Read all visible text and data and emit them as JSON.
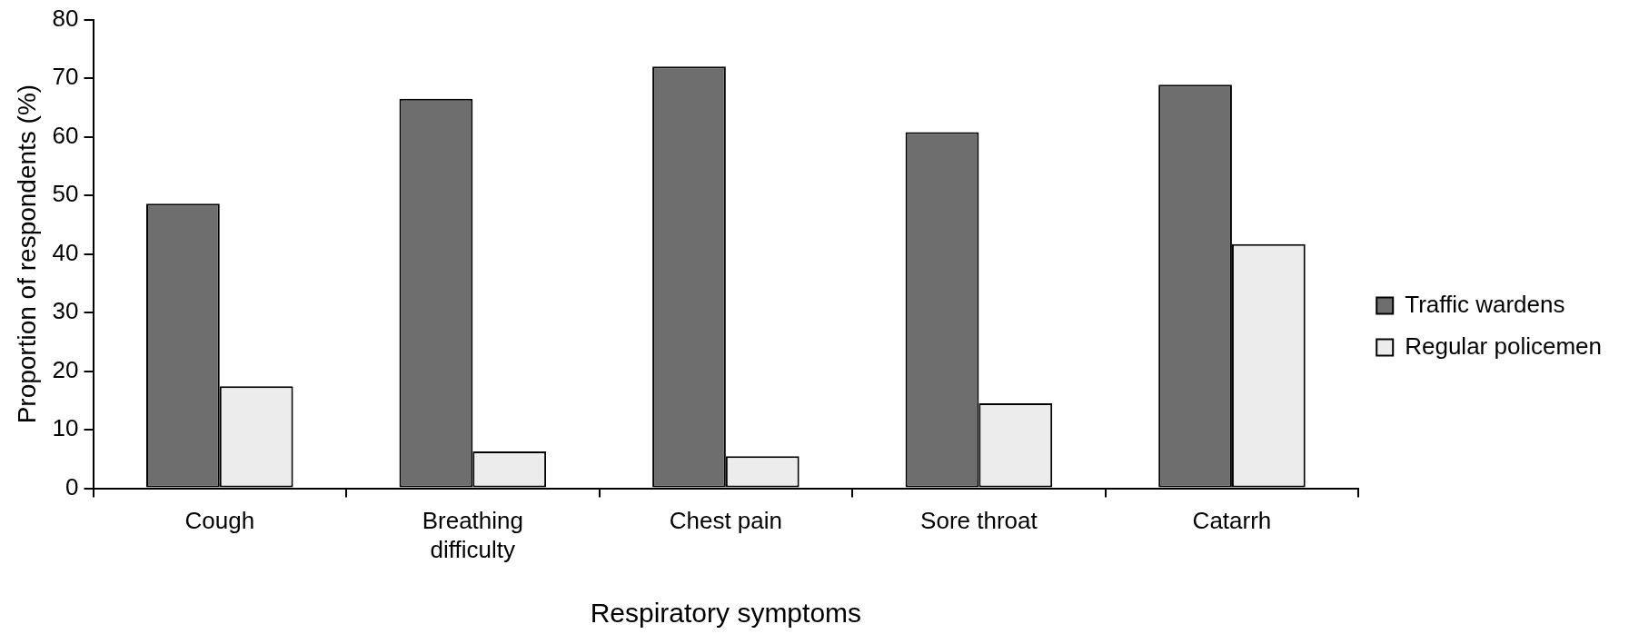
{
  "chart_data": {
    "type": "bar",
    "xlabel": "Respiratory symptoms",
    "ylabel": "Proportion of respondents (%)",
    "categories": [
      "Cough",
      "Breathing difficulty",
      "Chest pain",
      "Sore throat",
      "Catarrh"
    ],
    "series": [
      {
        "name": "Traffic wardens",
        "color": "#6e6e6e",
        "values": [
          48.6,
          66.5,
          72.0,
          60.8,
          68.9
        ]
      },
      {
        "name": "Regular policemen",
        "color": "#ececec",
        "values": [
          17.4,
          6.3,
          5.5,
          14.5,
          41.7
        ]
      }
    ],
    "ylim": [
      0,
      80
    ],
    "yticks": [
      0,
      10,
      20,
      30,
      40,
      50,
      60,
      70,
      80
    ],
    "grid": false,
    "legend": "right"
  }
}
